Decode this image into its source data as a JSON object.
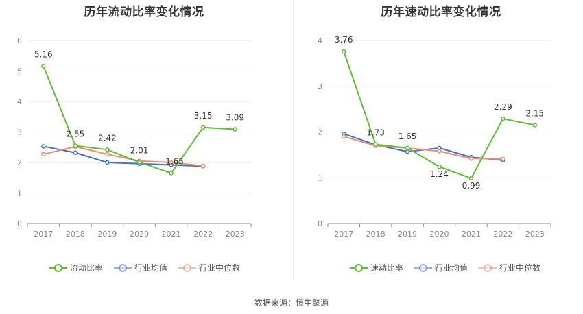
{
  "source": "数据来源：恒生聚源",
  "chart_data": [
    {
      "type": "line",
      "title": "历年流动比率变化情况",
      "categories": [
        "2017",
        "2018",
        "2019",
        "2020",
        "2021",
        "2022",
        "2023"
      ],
      "ylim": [
        0,
        6
      ],
      "yticks": [
        0,
        1,
        2,
        3,
        4,
        5,
        6
      ],
      "grid": true,
      "legend": "bottom",
      "series": [
        {
          "name": "流动比率",
          "color": "#5ac12e",
          "values": [
            5.16,
            2.55,
            2.42,
            2.01,
            1.65,
            3.15,
            3.09
          ],
          "labels": [
            "5.16",
            "2.55",
            "2.42",
            "2.01",
            "1.65",
            "3.15",
            "3.09"
          ]
        },
        {
          "name": "行业均值",
          "color": "#3c6fd8",
          "values": [
            2.53,
            2.32,
            2.0,
            1.96,
            1.92,
            1.88,
            null
          ]
        },
        {
          "name": "行业中位数",
          "color": "#f08d68",
          "values": [
            2.27,
            2.52,
            2.27,
            2.05,
            2.0,
            1.89,
            null
          ]
        }
      ]
    },
    {
      "type": "line",
      "title": "历年速动比率变化情况",
      "categories": [
        "2017",
        "2018",
        "2019",
        "2020",
        "2021",
        "2022",
        "2023"
      ],
      "ylim": [
        0,
        4
      ],
      "yticks": [
        0,
        1,
        2,
        3,
        4
      ],
      "grid": true,
      "legend": "bottom",
      "series": [
        {
          "name": "速动比率",
          "color": "#5ac12e",
          "values": [
            3.76,
            1.73,
            1.65,
            1.24,
            0.99,
            2.29,
            2.15
          ],
          "labels": [
            "3.76",
            "1.73",
            "1.65",
            "1.24",
            "0.99",
            "2.29",
            "2.15"
          ]
        },
        {
          "name": "行业均值",
          "color": "#3c6fd8",
          "values": [
            1.96,
            1.72,
            1.57,
            1.65,
            1.45,
            1.38,
            null
          ]
        },
        {
          "name": "行业中位数",
          "color": "#f08d68",
          "values": [
            1.9,
            1.7,
            1.65,
            1.58,
            1.42,
            1.41,
            null
          ]
        }
      ]
    }
  ]
}
